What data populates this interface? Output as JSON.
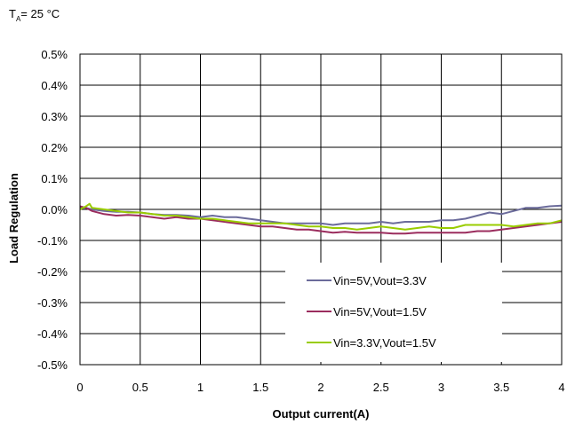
{
  "annotation": {
    "main": "T",
    "sub": "A",
    "rest": "= 25 °C"
  },
  "chart_data": {
    "type": "line",
    "xlabel": "Output current(A)",
    "ylabel": "Load Regulation",
    "xlim": [
      0,
      4
    ],
    "ylim": [
      -0.5,
      0.5
    ],
    "xticks": [
      0,
      0.5,
      1,
      1.5,
      2,
      2.5,
      3,
      3.5,
      4
    ],
    "xtick_labels": [
      "0",
      "0.5",
      "1",
      "1.5",
      "2",
      "2.5",
      "3",
      "3.5",
      "4"
    ],
    "yticks": [
      0.5,
      0.4,
      0.3,
      0.2,
      0.1,
      0.0,
      -0.1,
      -0.2,
      -0.3,
      -0.4,
      -0.5
    ],
    "ytick_labels": [
      "0.5%",
      "0.4%",
      "0.3%",
      "0.2%",
      "0.1%",
      "0.0%",
      "-0.1%",
      "-0.2%",
      "-0.3%",
      "-0.4%",
      "-0.5%"
    ],
    "grid": true,
    "legend_position": "bottom-right",
    "series": [
      {
        "name": "Vin=5V,Vout=3.3V",
        "color": "#6b6b9b",
        "x": [
          0,
          0.05,
          0.1,
          0.2,
          0.3,
          0.4,
          0.5,
          0.6,
          0.7,
          0.8,
          0.9,
          1.0,
          1.1,
          1.2,
          1.3,
          1.4,
          1.5,
          1.6,
          1.7,
          1.8,
          1.9,
          2.0,
          2.1,
          2.2,
          2.3,
          2.4,
          2.5,
          2.6,
          2.7,
          2.8,
          2.9,
          3.0,
          3.1,
          3.2,
          3.3,
          3.4,
          3.5,
          3.6,
          3.7,
          3.8,
          3.9,
          4.0
        ],
        "y": [
          0.005,
          0.005,
          0.0,
          -0.005,
          -0.008,
          -0.008,
          -0.01,
          -0.015,
          -0.018,
          -0.018,
          -0.02,
          -0.025,
          -0.02,
          -0.025,
          -0.025,
          -0.03,
          -0.035,
          -0.04,
          -0.045,
          -0.045,
          -0.045,
          -0.045,
          -0.05,
          -0.045,
          -0.045,
          -0.045,
          -0.04,
          -0.045,
          -0.04,
          -0.04,
          -0.04,
          -0.035,
          -0.035,
          -0.03,
          -0.02,
          -0.01,
          -0.015,
          -0.005,
          0.005,
          0.005,
          0.01,
          0.012
        ]
      },
      {
        "name": "Vin=5V,Vout=1.5V",
        "color": "#9b2d5e",
        "x": [
          0,
          0.05,
          0.1,
          0.2,
          0.3,
          0.4,
          0.5,
          0.6,
          0.7,
          0.8,
          0.9,
          1.0,
          1.1,
          1.2,
          1.3,
          1.4,
          1.5,
          1.6,
          1.7,
          1.8,
          1.9,
          2.0,
          2.1,
          2.2,
          2.3,
          2.4,
          2.5,
          2.6,
          2.7,
          2.8,
          2.9,
          3.0,
          3.1,
          3.2,
          3.3,
          3.4,
          3.5,
          3.6,
          3.7,
          3.8,
          3.9,
          4.0
        ],
        "y": [
          0.01,
          0.005,
          -0.005,
          -0.015,
          -0.02,
          -0.018,
          -0.02,
          -0.025,
          -0.03,
          -0.025,
          -0.03,
          -0.03,
          -0.035,
          -0.04,
          -0.045,
          -0.05,
          -0.055,
          -0.055,
          -0.06,
          -0.065,
          -0.065,
          -0.07,
          -0.075,
          -0.072,
          -0.075,
          -0.075,
          -0.075,
          -0.078,
          -0.078,
          -0.075,
          -0.075,
          -0.075,
          -0.075,
          -0.075,
          -0.07,
          -0.07,
          -0.065,
          -0.06,
          -0.055,
          -0.05,
          -0.045,
          -0.04
        ]
      },
      {
        "name": "Vin=3.3V,Vout=1.5V",
        "color": "#99cc00",
        "x": [
          0,
          0.05,
          0.08,
          0.1,
          0.2,
          0.3,
          0.4,
          0.5,
          0.6,
          0.7,
          0.8,
          0.9,
          1.0,
          1.1,
          1.2,
          1.3,
          1.4,
          1.5,
          1.6,
          1.7,
          1.8,
          1.9,
          2.0,
          2.1,
          2.2,
          2.3,
          2.4,
          2.5,
          2.6,
          2.7,
          2.8,
          2.9,
          3.0,
          3.1,
          3.2,
          3.3,
          3.4,
          3.5,
          3.6,
          3.7,
          3.8,
          3.9,
          4.0
        ],
        "y": [
          0.0,
          0.01,
          0.018,
          0.005,
          0.0,
          -0.005,
          -0.01,
          -0.01,
          -0.015,
          -0.02,
          -0.02,
          -0.025,
          -0.03,
          -0.03,
          -0.035,
          -0.04,
          -0.045,
          -0.045,
          -0.045,
          -0.045,
          -0.05,
          -0.055,
          -0.055,
          -0.06,
          -0.06,
          -0.065,
          -0.06,
          -0.055,
          -0.06,
          -0.065,
          -0.06,
          -0.055,
          -0.06,
          -0.06,
          -0.05,
          -0.05,
          -0.05,
          -0.05,
          -0.055,
          -0.05,
          -0.045,
          -0.045,
          -0.035
        ]
      }
    ]
  }
}
